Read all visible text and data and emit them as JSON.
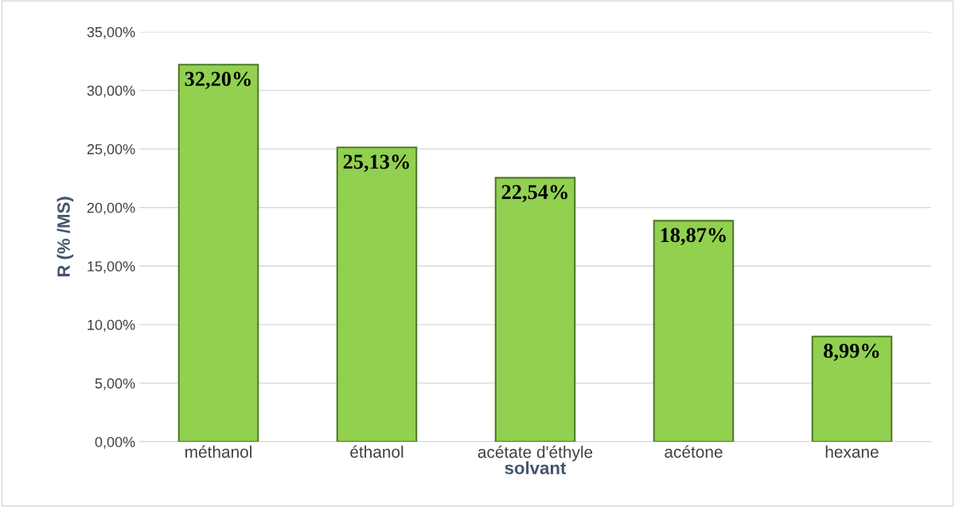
{
  "chart_data": {
    "type": "bar",
    "xlabel": "solvant",
    "ylabel": "R (% /MS)",
    "categories": [
      "méthanol",
      "éthanol",
      "acétate d'éthyle",
      "acétone",
      "hexane"
    ],
    "values": [
      32.2,
      25.13,
      22.54,
      18.87,
      8.99
    ],
    "value_labels": [
      "32,20%",
      "25,13%",
      "22,54%",
      "18,87%",
      "8,99%"
    ],
    "color": "#92d050",
    "ylim": [
      0,
      35
    ],
    "yticks": [
      {
        "value": 0,
        "label": "0,00%"
      },
      {
        "value": 5,
        "label": "5,00%"
      },
      {
        "value": 10,
        "label": "10,00%"
      },
      {
        "value": 15,
        "label": "15,00%"
      },
      {
        "value": 20,
        "label": "20,00%"
      },
      {
        "value": 25,
        "label": "25,00%"
      },
      {
        "value": 30,
        "label": "30,00%"
      },
      {
        "value": 35,
        "label": "35,00%"
      }
    ],
    "grid": "y",
    "legend": false
  }
}
